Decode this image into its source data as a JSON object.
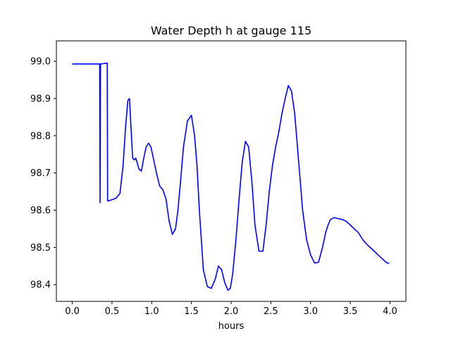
{
  "chart_data": {
    "type": "line",
    "title": "Water Depth h at gauge 115",
    "xlabel": "hours",
    "ylabel": "",
    "xlim": [
      -0.2,
      4.2
    ],
    "ylim": [
      98.355,
      99.055
    ],
    "xticks": [
      0.0,
      0.5,
      1.0,
      1.5,
      2.0,
      2.5,
      3.0,
      3.5,
      4.0
    ],
    "xtick_labels": [
      "0.0",
      "0.5",
      "1.0",
      "1.5",
      "2.0",
      "2.5",
      "3.0",
      "3.5",
      "4.0"
    ],
    "yticks": [
      98.4,
      98.5,
      98.6,
      98.7,
      98.8,
      98.9,
      99.0
    ],
    "ytick_labels": [
      "98.4",
      "98.5",
      "98.6",
      "98.7",
      "98.8",
      "98.9",
      "99.0"
    ],
    "grid": false,
    "series": [
      {
        "color": "#0000ff",
        "x": [
          0.0,
          0.34,
          0.345,
          0.35,
          0.355,
          0.36,
          0.44,
          0.445,
          0.45,
          0.47,
          0.55,
          0.6,
          0.64,
          0.67,
          0.7,
          0.72,
          0.74,
          0.76,
          0.78,
          0.8,
          0.84,
          0.87,
          0.9,
          0.93,
          0.96,
          0.99,
          1.02,
          1.06,
          1.1,
          1.14,
          1.18,
          1.22,
          1.26,
          1.3,
          1.33,
          1.36,
          1.4,
          1.45,
          1.5,
          1.54,
          1.57,
          1.6,
          1.65,
          1.7,
          1.75,
          1.8,
          1.84,
          1.88,
          1.92,
          1.96,
          1.99,
          2.02,
          2.06,
          2.1,
          2.14,
          2.18,
          2.22,
          2.26,
          2.3,
          2.35,
          2.4,
          2.44,
          2.48,
          2.52,
          2.56,
          2.6,
          2.64,
          2.68,
          2.72,
          2.76,
          2.8,
          2.85,
          2.9,
          2.95,
          3.0,
          3.05,
          3.1,
          3.15,
          3.19,
          3.22,
          3.25,
          3.3,
          3.35,
          3.4,
          3.45,
          3.5,
          3.55,
          3.6,
          3.63,
          3.66,
          3.7,
          3.75,
          3.8,
          3.85,
          3.9,
          3.95,
          3.97,
          3.99
        ],
        "y": [
          98.993,
          98.993,
          98.993,
          98.62,
          98.993,
          98.993,
          98.995,
          98.625,
          98.625,
          98.626,
          98.632,
          98.645,
          98.72,
          98.82,
          98.895,
          98.9,
          98.82,
          98.74,
          98.735,
          98.74,
          98.71,
          98.705,
          98.74,
          98.77,
          98.78,
          98.77,
          98.74,
          98.7,
          98.665,
          98.655,
          98.63,
          98.57,
          98.535,
          98.55,
          98.6,
          98.67,
          98.77,
          98.84,
          98.855,
          98.8,
          98.72,
          98.6,
          98.44,
          98.395,
          98.39,
          98.415,
          98.45,
          98.44,
          98.405,
          98.385,
          98.39,
          98.43,
          98.52,
          98.63,
          98.73,
          98.785,
          98.77,
          98.68,
          98.56,
          98.49,
          98.49,
          98.56,
          98.65,
          98.72,
          98.77,
          98.81,
          98.86,
          98.9,
          98.935,
          98.92,
          98.86,
          98.73,
          98.6,
          98.52,
          98.48,
          98.458,
          98.46,
          98.5,
          98.54,
          98.56,
          98.575,
          98.58,
          98.577,
          98.575,
          98.57,
          98.56,
          98.55,
          98.54,
          98.53,
          98.52,
          98.51,
          98.5,
          98.49,
          98.48,
          98.47,
          98.46,
          98.458,
          98.457
        ]
      }
    ]
  }
}
